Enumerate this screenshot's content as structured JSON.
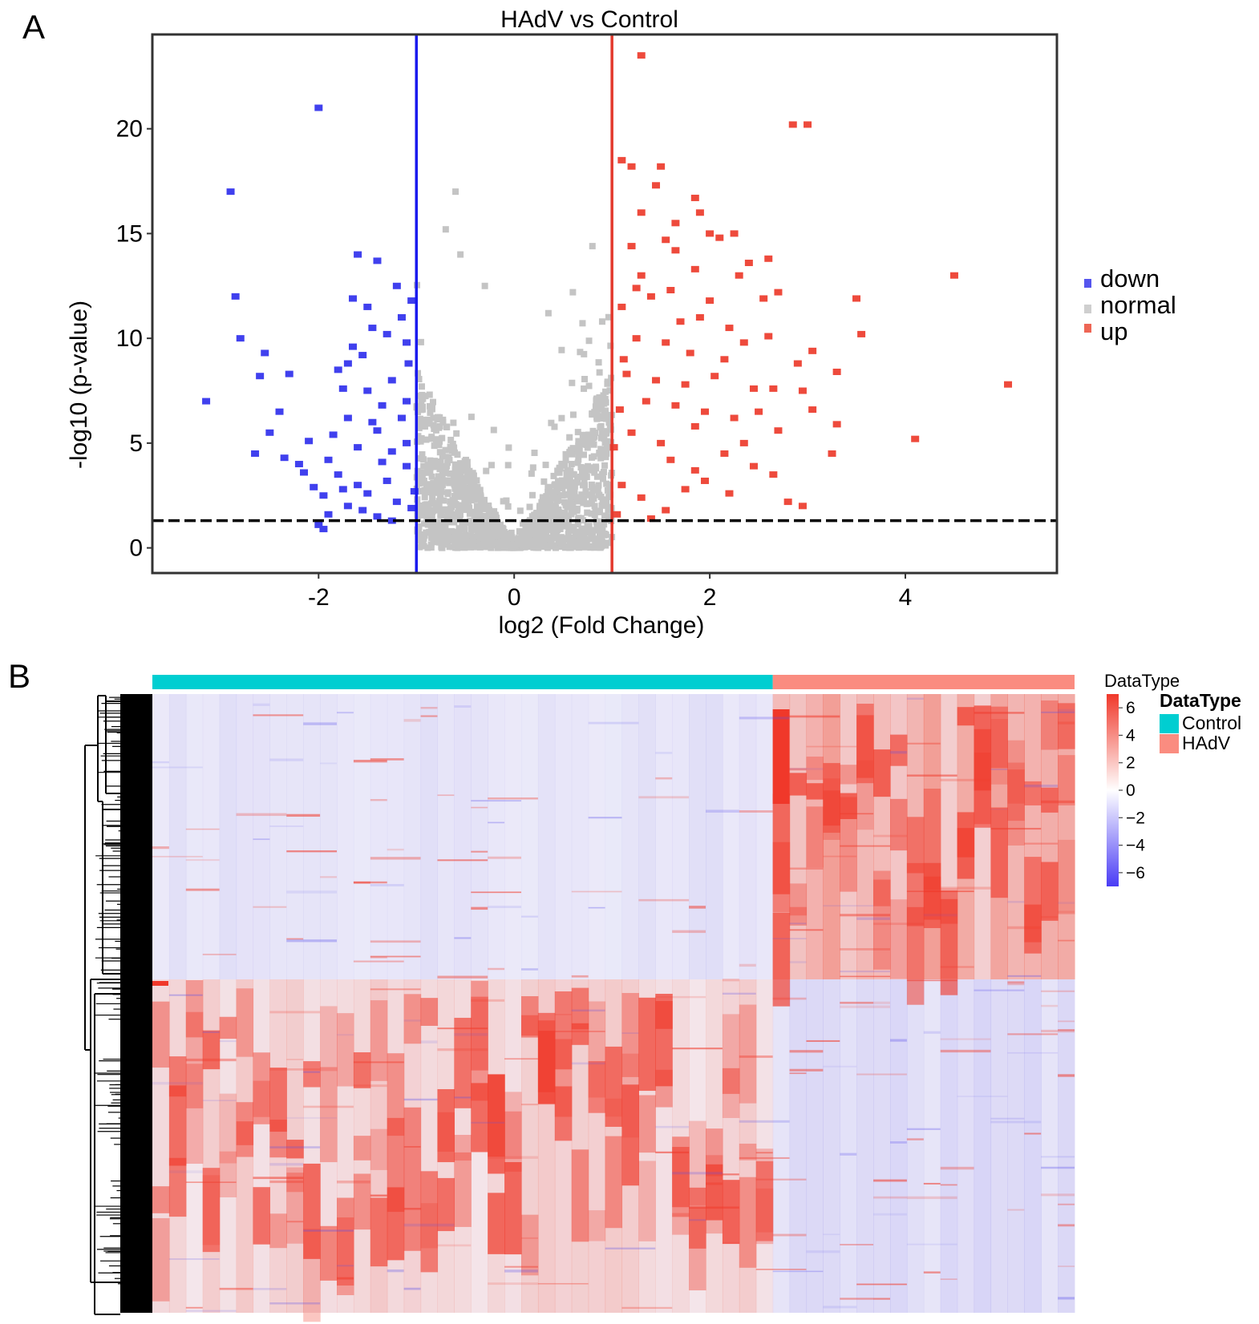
{
  "chart_data": [
    {
      "type": "scatter",
      "panel_label": "A",
      "title": "HAdV vs Control",
      "xlabel": "log2 (Fold Change)",
      "ylabel": "-log10 (p-value)",
      "xlim": [
        -3.7,
        5.55
      ],
      "ylim": [
        -1.2,
        24.5
      ],
      "x_ticks": [
        -2,
        0,
        2,
        4
      ],
      "x_tick_labels": [
        "-2",
        "0",
        "2",
        "4"
      ],
      "y_ticks": [
        0,
        5,
        10,
        15,
        20
      ],
      "y_tick_labels": [
        "0",
        "5",
        "10",
        "15",
        "20"
      ],
      "thresholds": {
        "log2fc_down": -1,
        "log2fc_up": 1,
        "neg_log10_p": 1.3
      },
      "legend": {
        "position": "right",
        "entries": [
          {
            "label": "down",
            "color": "#5555ee"
          },
          {
            "label": "normal",
            "color": "#c8c8c8"
          },
          {
            "label": "up",
            "color": "#ee6655"
          }
        ]
      },
      "colors": {
        "down": "#4040ee",
        "normal": "#c4c4c4",
        "up": "#ee4a3c",
        "down_line": "#1a1aee",
        "up_line": "#e3382c"
      },
      "series": [
        {
          "name": "down",
          "points": [
            [
              -2.0,
              21.0
            ],
            [
              -2.9,
              17.0
            ],
            [
              -2.85,
              12.0
            ],
            [
              -2.8,
              10.0
            ],
            [
              -3.15,
              7.0
            ],
            [
              -2.55,
              9.3
            ],
            [
              -2.6,
              8.2
            ],
            [
              -2.4,
              6.5
            ],
            [
              -2.3,
              8.3
            ],
            [
              -2.5,
              5.5
            ],
            [
              -2.65,
              4.5
            ],
            [
              -2.35,
              4.3
            ],
            [
              -2.2,
              4.0
            ],
            [
              -2.1,
              5.1
            ],
            [
              -2.15,
              3.6
            ],
            [
              -2.05,
              2.9
            ],
            [
              -1.95,
              2.5
            ],
            [
              -1.9,
              1.6
            ],
            [
              -2.0,
              1.1
            ],
            [
              -1.95,
              0.9
            ],
            [
              -1.8,
              8.5
            ],
            [
              -1.75,
              7.6
            ],
            [
              -1.7,
              8.8
            ],
            [
              -1.7,
              6.2
            ],
            [
              -1.65,
              11.9
            ],
            [
              -1.6,
              14.0
            ],
            [
              -1.5,
              11.5
            ],
            [
              -1.45,
              10.5
            ],
            [
              -1.4,
              13.7
            ],
            [
              -1.55,
              9.2
            ],
            [
              -1.5,
              7.5
            ],
            [
              -1.35,
              6.8
            ],
            [
              -1.3,
              10.2
            ],
            [
              -1.25,
              8.0
            ],
            [
              -1.2,
              12.5
            ],
            [
              -1.15,
              11.0
            ],
            [
              -1.1,
              9.8
            ],
            [
              -1.05,
              11.8
            ],
            [
              -1.1,
              7.0
            ],
            [
              -1.85,
              5.4
            ],
            [
              -1.6,
              4.8
            ],
            [
              -1.4,
              5.6
            ],
            [
              -1.25,
              4.6
            ],
            [
              -1.1,
              5.0
            ],
            [
              -1.8,
              3.5
            ],
            [
              -1.6,
              3.0
            ],
            [
              -1.5,
              2.6
            ],
            [
              -1.3,
              3.2
            ],
            [
              -1.2,
              2.2
            ],
            [
              -1.1,
              3.9
            ],
            [
              -1.7,
              2.0
            ],
            [
              -1.55,
              1.8
            ],
            [
              -1.4,
              1.5
            ],
            [
              -1.25,
              1.3
            ],
            [
              -1.05,
              1.9
            ],
            [
              -1.02,
              2.7
            ],
            [
              -1.15,
              6.2
            ],
            [
              -1.45,
              6.0
            ],
            [
              -1.9,
              4.2
            ],
            [
              -1.75,
              2.8
            ],
            [
              -1.35,
              4.1
            ],
            [
              -1.65,
              9.6
            ],
            [
              -1.08,
              8.8
            ]
          ]
        },
        {
          "name": "up",
          "points": [
            [
              1.3,
              23.5
            ],
            [
              2.85,
              20.2
            ],
            [
              3.0,
              20.2
            ],
            [
              1.1,
              18.5
            ],
            [
              1.2,
              18.2
            ],
            [
              1.5,
              18.2
            ],
            [
              1.45,
              17.3
            ],
            [
              1.85,
              16.7
            ],
            [
              1.9,
              16.0
            ],
            [
              1.3,
              16.0
            ],
            [
              1.65,
              15.5
            ],
            [
              2.0,
              15.0
            ],
            [
              2.1,
              14.8
            ],
            [
              2.25,
              15.0
            ],
            [
              1.2,
              14.4
            ],
            [
              1.55,
              14.7
            ],
            [
              1.65,
              14.2
            ],
            [
              2.4,
              13.6
            ],
            [
              2.6,
              13.8
            ],
            [
              1.3,
              13.0
            ],
            [
              1.85,
              13.3
            ],
            [
              2.3,
              13.0
            ],
            [
              1.4,
              12.0
            ],
            [
              1.6,
              12.3
            ],
            [
              2.0,
              11.8
            ],
            [
              2.55,
              11.9
            ],
            [
              2.7,
              12.2
            ],
            [
              1.1,
              11.5
            ],
            [
              1.9,
              11.0
            ],
            [
              2.2,
              10.5
            ],
            [
              1.25,
              10.0
            ],
            [
              1.55,
              9.8
            ],
            [
              1.8,
              9.3
            ],
            [
              2.35,
              9.8
            ],
            [
              2.6,
              10.1
            ],
            [
              3.05,
              9.4
            ],
            [
              2.9,
              8.8
            ],
            [
              3.3,
              8.4
            ],
            [
              1.15,
              8.3
            ],
            [
              1.45,
              8.0
            ],
            [
              1.75,
              7.8
            ],
            [
              2.05,
              8.2
            ],
            [
              2.45,
              7.6
            ],
            [
              2.65,
              7.6
            ],
            [
              1.35,
              7.0
            ],
            [
              1.65,
              6.8
            ],
            [
              1.95,
              6.5
            ],
            [
              2.25,
              6.2
            ],
            [
              2.5,
              6.5
            ],
            [
              2.95,
              7.5
            ],
            [
              3.05,
              6.6
            ],
            [
              3.3,
              5.9
            ],
            [
              1.2,
              5.5
            ],
            [
              1.5,
              5.0
            ],
            [
              1.85,
              5.8
            ],
            [
              2.15,
              4.5
            ],
            [
              2.35,
              5.0
            ],
            [
              2.7,
              5.6
            ],
            [
              3.25,
              4.5
            ],
            [
              4.1,
              5.2
            ],
            [
              3.5,
              11.9
            ],
            [
              3.55,
              10.2
            ],
            [
              4.5,
              13.0
            ],
            [
              5.05,
              7.8
            ],
            [
              2.65,
              3.5
            ],
            [
              2.8,
              2.2
            ],
            [
              2.95,
              2.0
            ],
            [
              1.1,
              3.0
            ],
            [
              1.3,
              2.4
            ],
            [
              1.55,
              1.8
            ],
            [
              1.75,
              2.8
            ],
            [
              1.95,
              3.2
            ],
            [
              2.2,
              2.6
            ],
            [
              1.05,
              1.6
            ],
            [
              1.4,
              1.4
            ],
            [
              1.6,
              4.2
            ],
            [
              1.85,
              3.7
            ],
            [
              2.45,
              3.9
            ],
            [
              1.02,
              4.8
            ],
            [
              1.08,
              6.6
            ],
            [
              1.12,
              9.0
            ],
            [
              1.25,
              12.4
            ],
            [
              1.7,
              10.8
            ],
            [
              2.15,
              9.0
            ]
          ]
        }
      ]
    },
    {
      "type": "heatmap",
      "panel_label": "B",
      "annotation_title": "DataType",
      "groups": [
        {
          "name": "Control",
          "columns": 37,
          "color": "#00ced1"
        },
        {
          "name": "HAdV",
          "columns": 18,
          "color": "#fa8c80"
        }
      ],
      "colorbar": {
        "title": "DataType",
        "range": [
          -7,
          7
        ],
        "ticks": [
          6,
          4,
          2,
          0,
          -2,
          -4,
          -6
        ],
        "tick_labels": [
          "6",
          "4",
          "2",
          "0",
          "−2",
          "−4",
          "−6"
        ],
        "low_color": "#4a3cf5",
        "mid_color": "#ffffff",
        "high_color": "#f0382a"
      },
      "legend_title": "DataType",
      "legend_entries": [
        {
          "label": "Control",
          "color": "#00ced1"
        },
        {
          "label": "HAdV",
          "color": "#fa8c80"
        }
      ],
      "row_dendrogram": true
    }
  ]
}
